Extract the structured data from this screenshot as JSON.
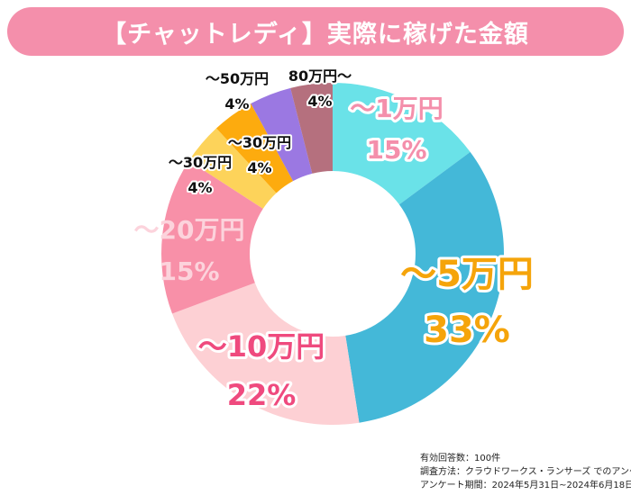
{
  "title": "【チャットレディ】実際に稼げた金額",
  "chart_data": {
    "type": "pie",
    "style": "donut",
    "title": "【チャットレディ】実際に稼げた金額",
    "slices": [
      {
        "label": "～1万円",
        "value": 15,
        "percent_label": "15%",
        "color": "#6ae2e8",
        "label_color": "#f48fab"
      },
      {
        "label": "～5万円",
        "value": 33,
        "percent_label": "33%",
        "color": "#44b8d8",
        "label_color": "#f5a40a"
      },
      {
        "label": "～10万円",
        "value": 22,
        "percent_label": "22%",
        "color": "#fdd0d4",
        "label_color": "#ef4a7e"
      },
      {
        "label": "～20万円",
        "value": 15,
        "percent_label": "15%",
        "color": "#f890a8",
        "label_color": "#fcd3dc"
      },
      {
        "label": "～30万円",
        "value": 4,
        "percent_label": "4%",
        "color": "#fdd35a",
        "label_color": "#111111"
      },
      {
        "label": "～30万円",
        "value": 4,
        "percent_label": "4%",
        "color": "#fdab0e",
        "label_color": "#111111"
      },
      {
        "label": "～50万円",
        "value": 4,
        "percent_label": "4%",
        "color": "#9b78e2",
        "label_color": "#111111"
      },
      {
        "label": "80万円～",
        "value": 4,
        "percent_label": "4%",
        "color": "#b5707e",
        "label_color": "#111111"
      }
    ]
  },
  "notes": [
    "有効回答数：100件",
    "調査方法：クラウドワークス・ランサーズ でのアンケート",
    "アンケート期間：2024年5月31日~2024年6月18日"
  ]
}
